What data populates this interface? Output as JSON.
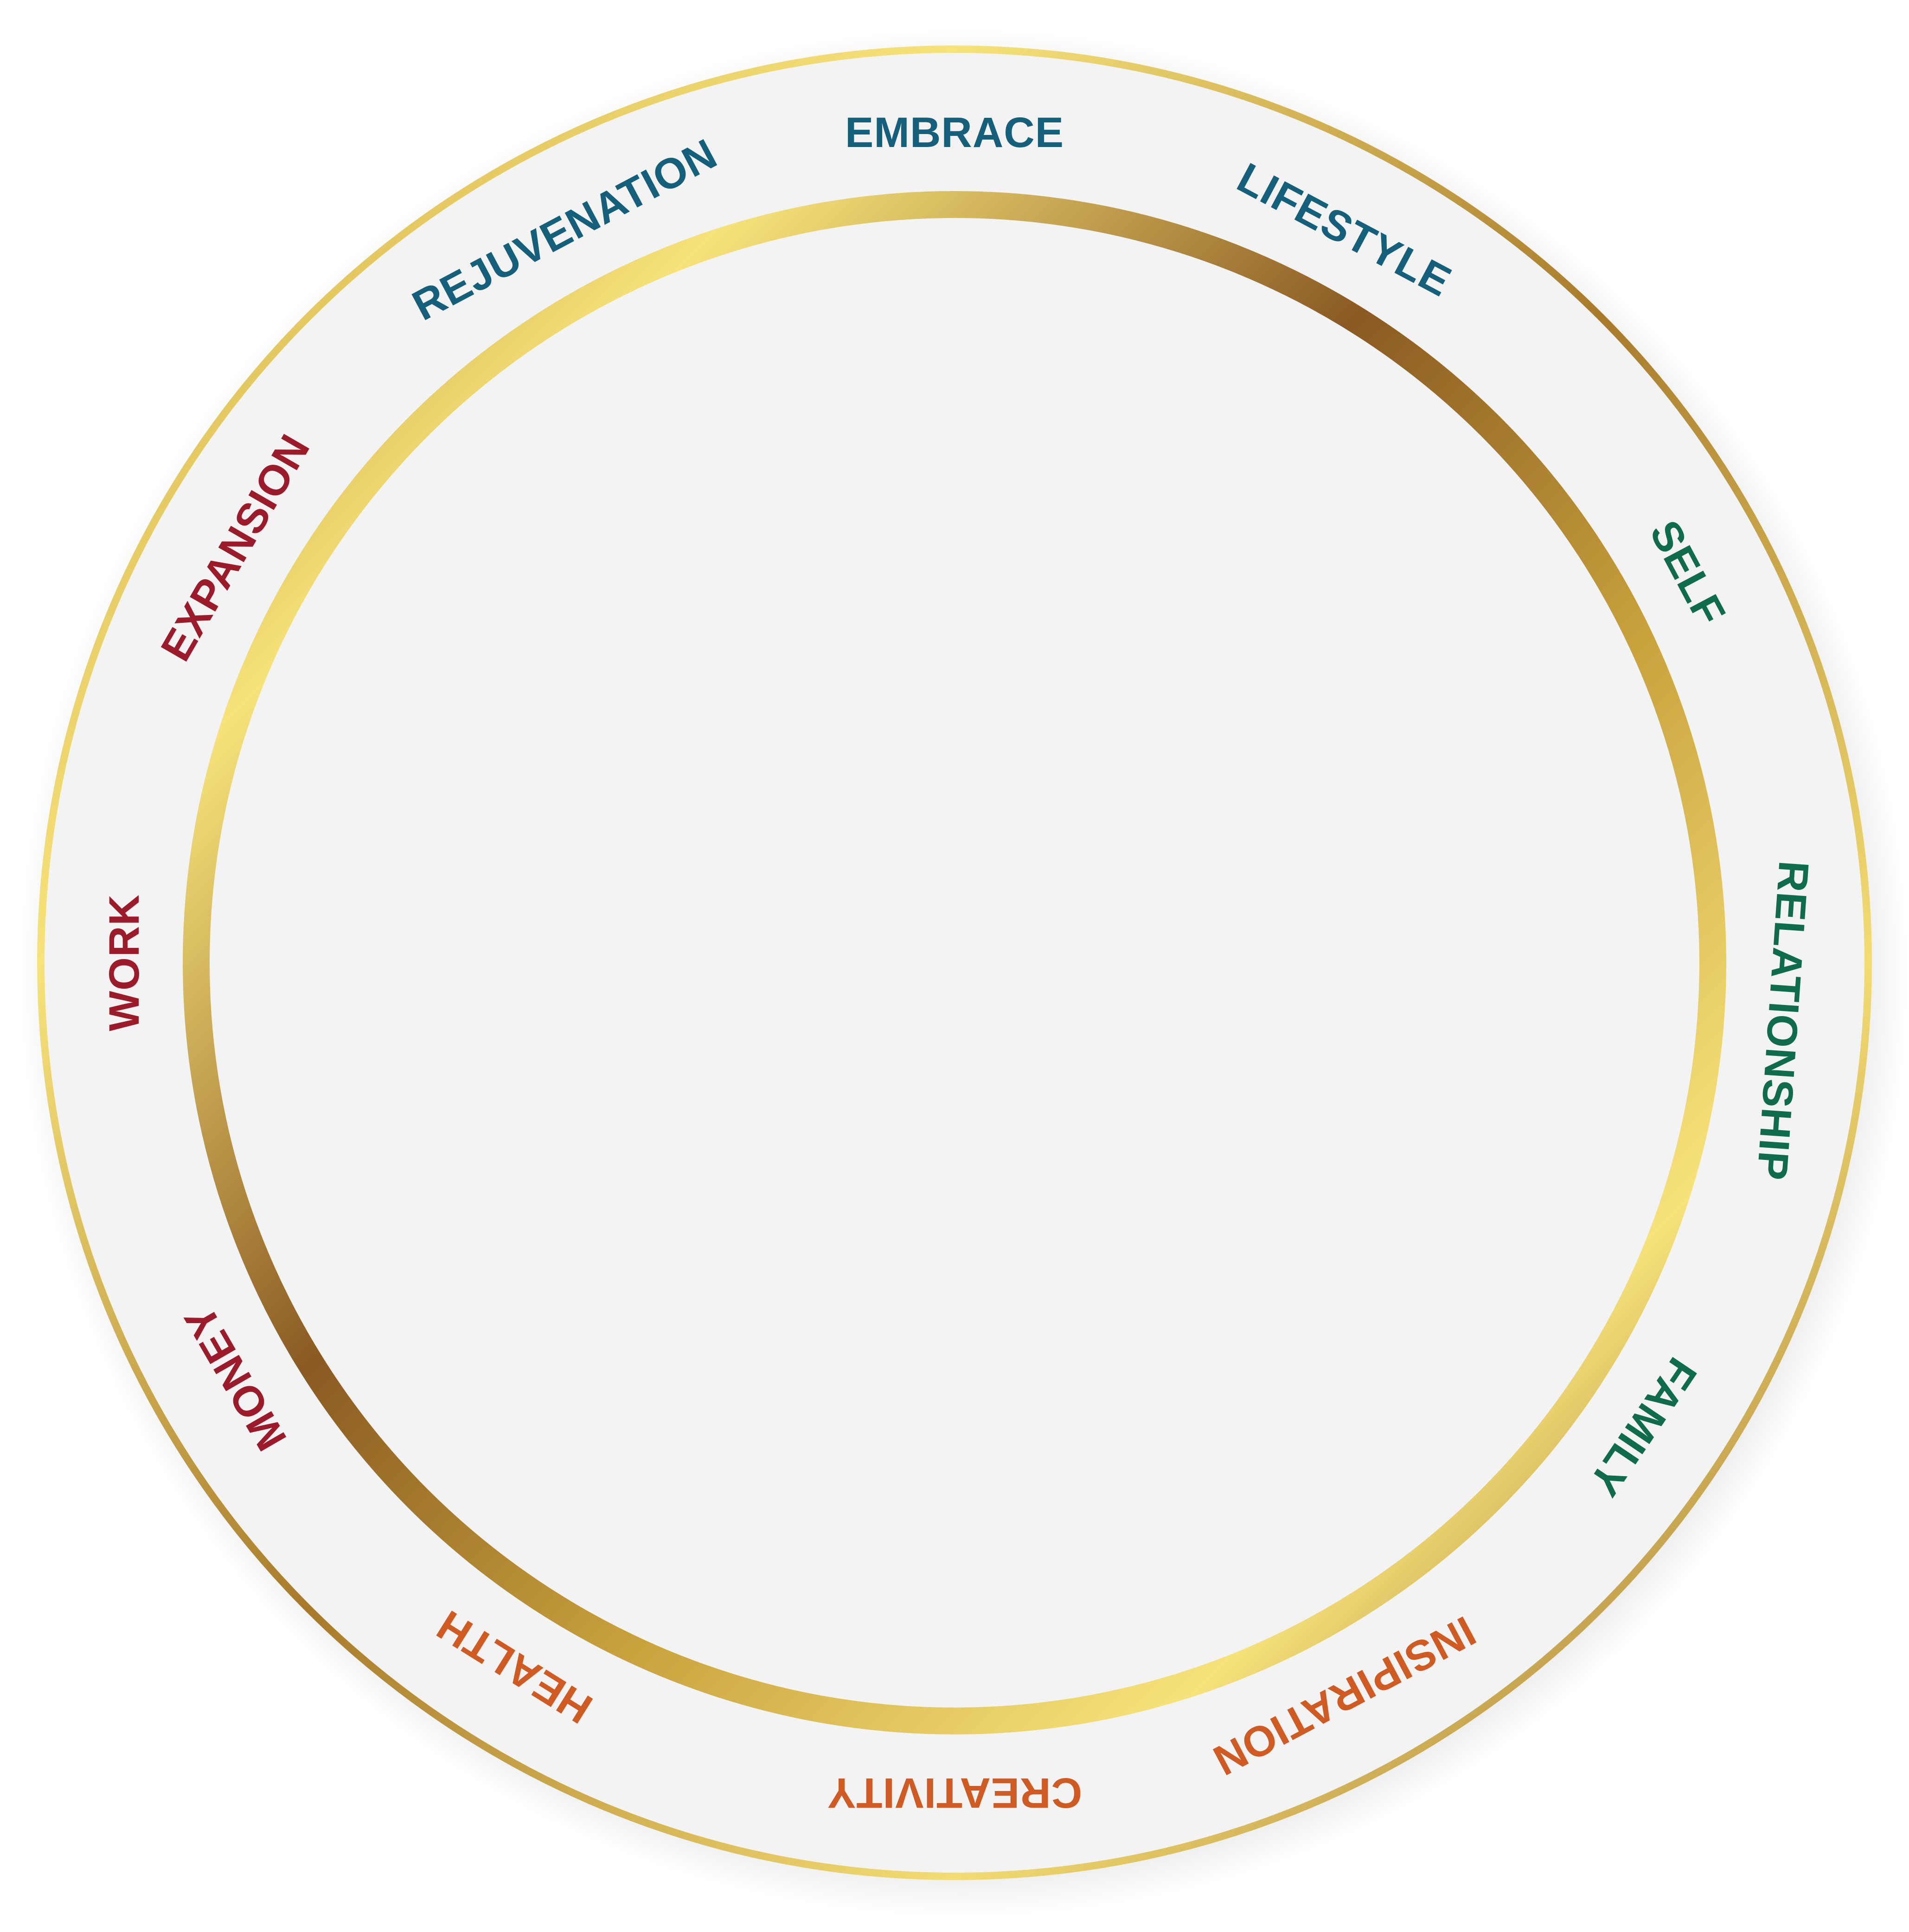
{
  "colors": {
    "background": "#ffffff",
    "plate": "#f3f3f3",
    "gold_light": "#f7e37a",
    "gold_mid": "#c9a23c",
    "gold_dark": "#8a5a22",
    "teal": "#145f7a",
    "green": "#0f6b4e",
    "orange": "#cf5a22",
    "crimson": "#9b1b2a"
  },
  "segments": [
    {
      "label": "EMBRACE",
      "angle": 0,
      "color": "#145f7a"
    },
    {
      "label": "LIFESTYLE",
      "angle": 28,
      "color": "#145f7a"
    },
    {
      "label": "SELF",
      "angle": 62,
      "color": "#0f6b4e"
    },
    {
      "label": "RELATIONSHIP",
      "angle": 94,
      "color": "#0f6b4e"
    },
    {
      "label": "FAMILY",
      "angle": 124,
      "color": "#0f6b4e"
    },
    {
      "label": "INSIPIRATION",
      "angle": 152,
      "color": "#cf5a22"
    },
    {
      "label": "CREATIVITY",
      "angle": 180,
      "color": "#cf5a22"
    },
    {
      "label": "HEALTH",
      "angle": 212,
      "color": "#cf5a22"
    },
    {
      "label": "MONEY",
      "angle": 240,
      "color": "#9b1b2a"
    },
    {
      "label": "WORK",
      "angle": 270,
      "color": "#9b1b2a"
    },
    {
      "label": "EXPANSION",
      "angle": 300,
      "color": "#9b1b2a"
    },
    {
      "label": "REJUVENATION",
      "angle": 332,
      "color": "#145f7a"
    }
  ]
}
